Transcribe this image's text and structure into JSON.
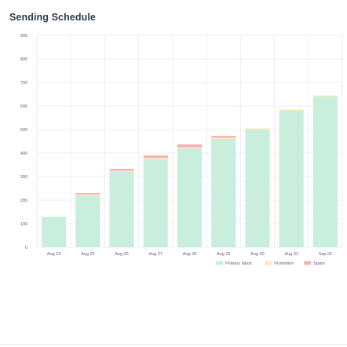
{
  "header": {
    "title": "Sending Schedule"
  },
  "chart_data": {
    "type": "bar",
    "stacked": true,
    "categories": [
      "Aug 24",
      "Aug 25",
      "Aug 26",
      "Aug 27",
      "Aug 28",
      "Aug 29",
      "Aug 30",
      "Aug 31",
      "Sep 01"
    ],
    "series": [
      {
        "name": "Primary Inbox",
        "color": "#c9eedd",
        "values": [
          130,
          220,
          320,
          375,
          420,
          460,
          500,
          580,
          640
        ]
      },
      {
        "name": "Promotion",
        "color": "#fde9b8",
        "values": [
          0,
          5,
          5,
          5,
          5,
          5,
          5,
          5,
          5
        ]
      },
      {
        "name": "Spam",
        "color": "#f7b1b3",
        "values": [
          0,
          5,
          8,
          10,
          12,
          8,
          0,
          0,
          0
        ]
      }
    ],
    "y_ticks": [
      0,
      100,
      200,
      300,
      400,
      500,
      600,
      700,
      800,
      900
    ],
    "ylim": [
      0,
      900
    ],
    "grid": true,
    "legend": "bottom-right",
    "colors": {
      "grid": "#eceff2",
      "axis_text": "#5b6573",
      "bar_edge": "#ffffff"
    }
  }
}
